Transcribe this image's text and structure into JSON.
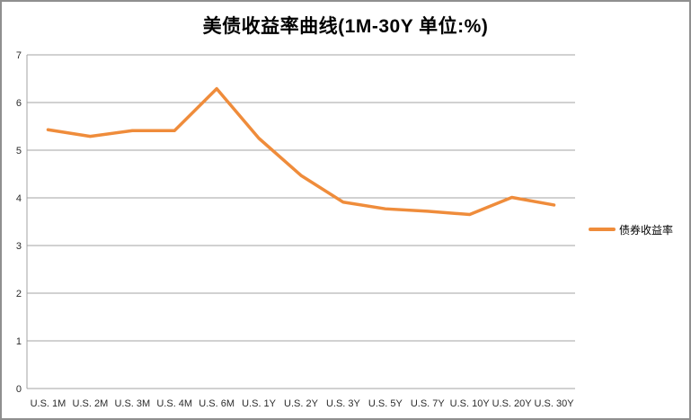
{
  "window": {
    "background": "#FFFFFF",
    "border_color": "#8F8F8F"
  },
  "colors": {
    "grid": "#A3A3A3",
    "axis": "#A3A3A3",
    "tick_text": "#2B2B2B",
    "title_text": "#000000"
  },
  "legend": {
    "position": "right",
    "swatch": "orange-line"
  },
  "chart_data": {
    "type": "line",
    "title": "美债收益率曲线(1M-30Y 单位:%)",
    "xlabel": "",
    "ylabel": "",
    "ylim": [
      0,
      7
    ],
    "y_ticks": [
      0,
      1,
      2,
      3,
      4,
      5,
      6,
      7
    ],
    "grid": "horizontal",
    "legend_position": "right",
    "categories": [
      "U.S. 1M",
      "U.S. 2M",
      "U.S. 3M",
      "U.S. 4M",
      "U.S. 6M",
      "U.S. 1Y",
      "U.S. 2Y",
      "U.S. 3Y",
      "U.S. 5Y",
      "U.S. 7Y",
      "U.S. 10Y",
      "U.S. 20Y",
      "U.S. 30Y"
    ],
    "series": [
      {
        "name": "债券收益率",
        "color": "#EF8C3B",
        "values": [
          5.43,
          5.29,
          5.41,
          5.41,
          6.29,
          5.25,
          4.47,
          3.91,
          3.77,
          3.72,
          3.65,
          4.01,
          3.85
        ]
      }
    ]
  }
}
